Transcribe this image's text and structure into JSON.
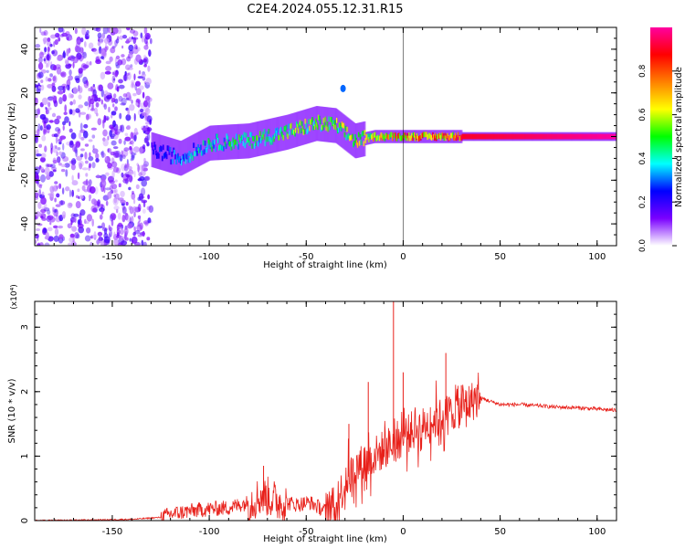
{
  "title": "C2E4.2024.055.12.31.R15",
  "chart_data": [
    {
      "type": "heatmap",
      "title": "C2E4.2024.055.12.31.R15",
      "xlabel": "Height of straight line (km)",
      "ylabel": "Frequency (Hz)",
      "xlim": [
        -190,
        110
      ],
      "ylim": [
        -50,
        50
      ],
      "x_ticks": [
        "-150",
        "-100",
        "-50",
        "0",
        "50",
        "100"
      ],
      "y_ticks": [
        "40",
        "20",
        "0",
        "-20",
        "-40"
      ],
      "grid": false,
      "colorbar": {
        "label": "Normalized spectral amplitude",
        "range": [
          0,
          1
        ],
        "ticks": [
          "0.0",
          "0.2",
          "0.4",
          "0.6",
          "0.8"
        ],
        "colors": [
          "#ffffff",
          "#7a00ff",
          "#0000ff",
          "#00ffff",
          "#00ff00",
          "#ffff00",
          "#ff8000",
          "#ff0000",
          "#ff00a0"
        ]
      },
      "regions": [
        {
          "name": "noise",
          "x_range": [
            -190,
            -130
          ],
          "freq_range": [
            -50,
            50
          ],
          "amplitude": 0.1
        },
        {
          "name": "track",
          "points": [
            [
              -130,
              -6,
              0.25
            ],
            [
              -115,
              -10,
              0.35
            ],
            [
              -100,
              -3,
              0.45
            ],
            [
              -80,
              -2,
              0.5
            ],
            [
              -60,
              2,
              0.55
            ],
            [
              -45,
              6,
              0.6
            ],
            [
              -35,
              5,
              0.6
            ],
            [
              -25,
              -2,
              0.65
            ],
            [
              -15,
              0,
              0.7
            ],
            [
              0,
              0,
              0.8
            ],
            [
              30,
              0,
              0.9
            ],
            [
              110,
              0,
              1.0
            ]
          ]
        },
        {
          "name": "spot",
          "x": -31,
          "freq": 22,
          "amplitude": 0.3
        }
      ]
    },
    {
      "type": "line",
      "xlabel": "Height of straight line (km)",
      "ylabel": "SNR (10 * v/v)",
      "y_scale_label": "(x10⁴)",
      "xlim": [
        -190,
        110
      ],
      "ylim": [
        0,
        3.4
      ],
      "x_ticks": [
        "-150",
        "-100",
        "-50",
        "0",
        "50",
        "100"
      ],
      "y_ticks": [
        "0",
        "1",
        "2",
        "3"
      ],
      "grid": false,
      "color": "#e8201a",
      "series": [
        {
          "x": [
            -190,
            -160,
            -140,
            -125,
            -120,
            -110,
            -100,
            -90,
            -80,
            -72,
            -65,
            -55,
            -48,
            -40,
            -35,
            -30,
            -25,
            -20,
            -15,
            -10,
            -5,
            0,
            5,
            10,
            15,
            20,
            25,
            30,
            35,
            40,
            45,
            50,
            60,
            70,
            80,
            90,
            100,
            110
          ],
          "y": [
            0.0,
            0.01,
            0.02,
            0.05,
            0.1,
            0.15,
            0.18,
            0.2,
            0.28,
            0.4,
            0.3,
            0.25,
            0.28,
            0.15,
            0.22,
            0.6,
            0.8,
            0.9,
            1.0,
            1.1,
            1.2,
            1.3,
            1.4,
            1.45,
            1.55,
            1.6,
            1.7,
            1.75,
            1.85,
            1.9,
            1.85,
            1.8,
            1.8,
            1.78,
            1.76,
            1.75,
            1.73,
            1.71
          ]
        }
      ],
      "peaks": [
        {
          "x": -72,
          "y": 0.85
        },
        {
          "x": -28,
          "y": 1.5
        },
        {
          "x": -18,
          "y": 2.15
        },
        {
          "x": -5,
          "y": 3.4
        },
        {
          "x": 0,
          "y": 2.3
        },
        {
          "x": 22,
          "y": 2.6
        },
        {
          "x": 30,
          "y": 2.1
        }
      ]
    }
  ]
}
